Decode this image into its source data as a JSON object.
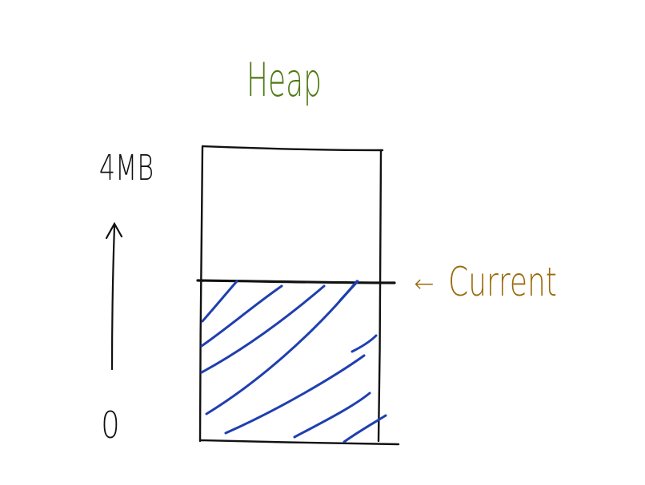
{
  "title": "Heap",
  "max_label": "4MB",
  "min_label": "0",
  "pointer_label": "Current",
  "pointer_arrow": "←",
  "fill_level": 0.45,
  "colors": {
    "title": "#4f7a12",
    "pointer": "#9a6a0c",
    "ink": "#111111",
    "hatch": "#1f3fb0"
  }
}
